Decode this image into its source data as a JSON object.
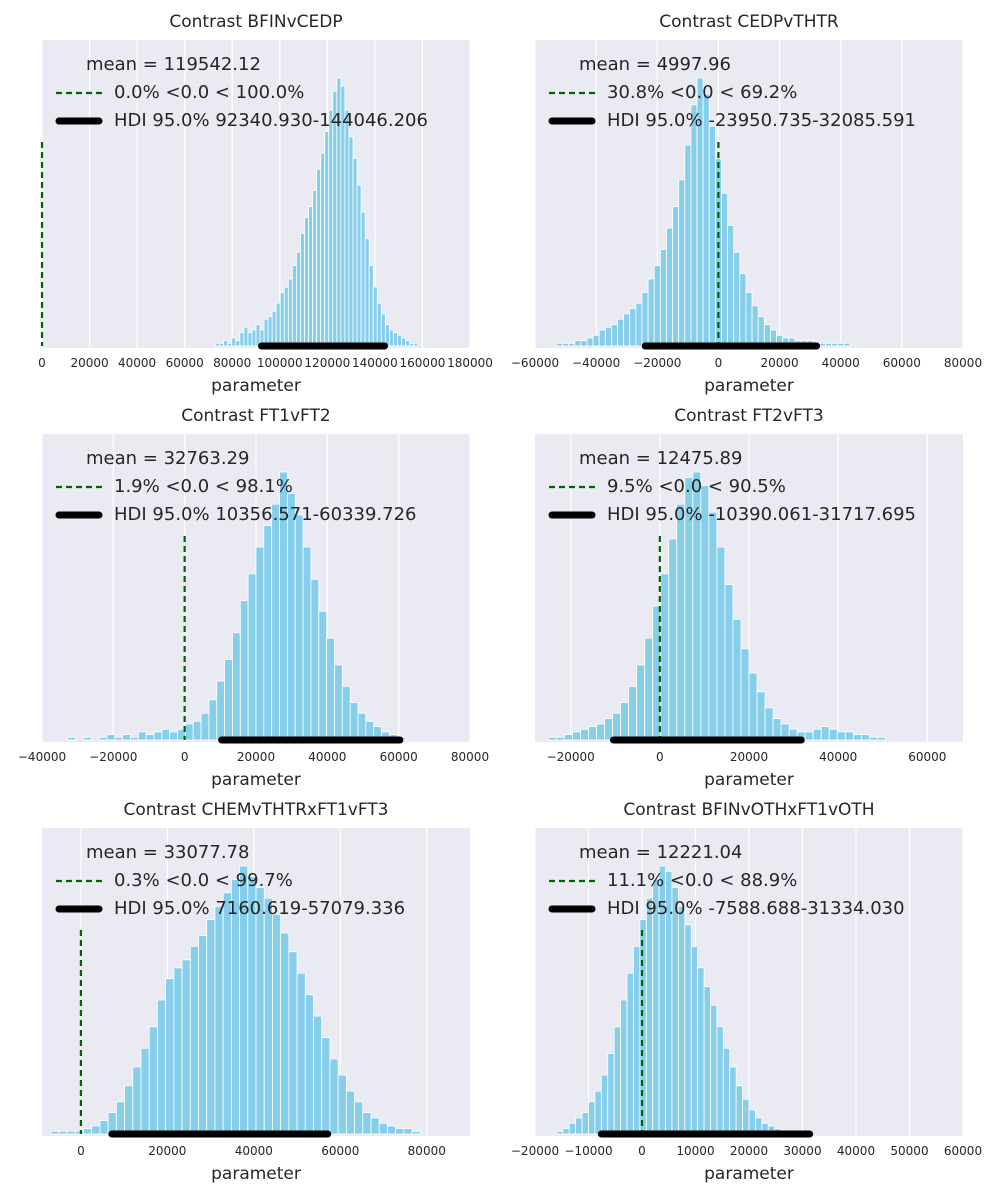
{
  "chart_data": [
    {
      "type": "bar",
      "title": "Contrast BFINvCEDP",
      "xlabel": "parameter",
      "ylabel": "",
      "xlim": [
        0,
        180000
      ],
      "xticks": [
        0,
        20000,
        40000,
        60000,
        80000,
        100000,
        120000,
        140000,
        160000,
        180000
      ],
      "grid": true,
      "legend_position": "top-left",
      "reference_value": 0.0,
      "stats": {
        "mean": 119542.12,
        "pct_below": 0.0,
        "pct_above": 100.0,
        "hdi": 95.0,
        "hdi_low": 92340.93,
        "hdi_high": 144046.206
      },
      "legend": [
        "mean = 119542.12",
        "0.0% <0.0 < 100.0%",
        "HDI 95.0% 92340.930-144046.206"
      ],
      "bin_start": 73000,
      "bin_width": 1700,
      "counts": [
        1,
        1,
        2,
        1,
        3,
        2,
        5,
        7,
        5,
        6,
        8,
        6,
        10,
        11,
        13,
        16,
        20,
        22,
        25,
        30,
        35,
        42,
        48,
        52,
        58,
        66,
        72,
        80,
        88,
        95,
        100,
        97,
        88,
        78,
        70,
        60,
        50,
        40,
        30,
        22,
        16,
        12,
        8,
        6,
        5,
        4,
        3,
        2,
        1,
        1
      ]
    },
    {
      "type": "bar",
      "title": "Contrast CEDPvTHTR",
      "xlabel": "parameter",
      "ylabel": "",
      "xlim": [
        -60000,
        80000
      ],
      "xticks": [
        -60000,
        -40000,
        -20000,
        0,
        20000,
        40000,
        60000,
        80000
      ],
      "grid": true,
      "legend_position": "top-left",
      "reference_value": 0.0,
      "stats": {
        "mean": 4997.96,
        "pct_below": 30.8,
        "pct_above": 69.2,
        "hdi": 95.0,
        "hdi_low": -23950.735,
        "hdi_high": 32085.591
      },
      "legend": [
        "mean = 4997.96",
        "30.8% <0.0 < 69.2%",
        "HDI 95.0% -23950.735-32085.591"
      ],
      "bin_start": -55000,
      "bin_width": 2000,
      "counts": [
        0,
        1,
        1,
        1,
        2,
        2,
        3,
        4,
        6,
        7,
        8,
        10,
        12,
        14,
        16,
        20,
        25,
        30,
        36,
        44,
        52,
        62,
        75,
        90,
        100,
        94,
        82,
        70,
        57,
        45,
        35,
        27,
        20,
        15,
        11,
        8,
        6,
        4,
        3,
        3,
        2,
        2,
        2,
        1,
        1,
        1,
        1,
        1,
        1
      ]
    },
    {
      "type": "bar",
      "title": "Contrast FT1vFT2",
      "xlabel": "parameter",
      "ylabel": "",
      "xlim": [
        -40000,
        80000
      ],
      "xticks": [
        -40000,
        -20000,
        0,
        20000,
        40000,
        60000,
        80000
      ],
      "grid": true,
      "legend_position": "top-left",
      "reference_value": 0.0,
      "stats": {
        "mean": 32763.29,
        "pct_below": 1.9,
        "pct_above": 98.1,
        "hdi": 95.0,
        "hdi_low": 10356.571,
        "hdi_high": 60339.726
      },
      "legend": [
        "mean = 32763.29",
        "1.9% <0.0 < 98.1%",
        "HDI 95.0% 10356.571-60339.726"
      ],
      "bin_start": -35000,
      "bin_width": 2200,
      "counts": [
        0,
        1,
        0,
        1,
        0,
        1,
        2,
        1,
        2,
        1,
        3,
        2,
        3,
        4,
        3,
        4,
        6,
        7,
        10,
        15,
        22,
        30,
        40,
        52,
        62,
        72,
        80,
        88,
        100,
        92,
        84,
        72,
        60,
        48,
        38,
        28,
        20,
        14,
        10,
        7,
        5,
        3,
        2,
        1
      ]
    },
    {
      "type": "bar",
      "title": "Contrast FT2vFT3",
      "xlabel": "parameter",
      "ylabel": "",
      "xlim": [
        -28000,
        68000
      ],
      "xticks": [
        -20000,
        0,
        20000,
        40000,
        60000
      ],
      "grid": true,
      "legend_position": "top-left",
      "reference_value": 0.0,
      "stats": {
        "mean": 12475.89,
        "pct_below": 9.5,
        "pct_above": 90.5,
        "hdi": 95.0,
        "hdi_low": -10390.061,
        "hdi_high": 31717.695
      },
      "legend": [
        "mean = 12475.89",
        "9.5% <0.0 < 90.5%",
        "HDI 95.0% -10390.061-31717.695"
      ],
      "bin_start": -25000,
      "bin_width": 1800,
      "counts": [
        1,
        1,
        2,
        3,
        4,
        5,
        6,
        8,
        10,
        14,
        20,
        28,
        38,
        50,
        62,
        75,
        88,
        98,
        100,
        95,
        85,
        72,
        58,
        45,
        34,
        25,
        18,
        12,
        8,
        6,
        4,
        3,
        3,
        4,
        5,
        4,
        3,
        3,
        2,
        2,
        1,
        1
      ]
    },
    {
      "type": "bar",
      "title": "Contrast CHEMvTHTRxFT1vFT3",
      "xlabel": "parameter",
      "ylabel": "",
      "xlim": [
        -9000,
        90000
      ],
      "xticks": [
        0,
        20000,
        40000,
        60000,
        80000
      ],
      "grid": true,
      "legend_position": "top-left",
      "reference_value": 0.0,
      "stats": {
        "mean": 33077.78,
        "pct_below": 0.3,
        "pct_above": 99.7,
        "hdi": 95.0,
        "hdi_low": 7160.619,
        "hdi_high": 57079.336
      },
      "legend": [
        "mean = 33077.78",
        "0.3% <0.0 < 99.7%",
        "HDI 95.0% 7160.619-57079.336"
      ],
      "bin_start": -7000,
      "bin_width": 1900,
      "counts": [
        1,
        1,
        1,
        1,
        2,
        3,
        5,
        8,
        12,
        18,
        25,
        32,
        40,
        50,
        58,
        62,
        65,
        70,
        74,
        80,
        85,
        90,
        95,
        100,
        96,
        92,
        88,
        82,
        75,
        68,
        60,
        52,
        44,
        36,
        28,
        22,
        16,
        12,
        8,
        6,
        4,
        3,
        2,
        2,
        1
      ]
    },
    {
      "type": "bar",
      "title": "Contrast BFINvOTHxFT1vOTH",
      "xlabel": "parameter",
      "ylabel": "",
      "xlim": [
        -20000,
        60000
      ],
      "xticks": [
        -20000,
        -10000,
        0,
        10000,
        20000,
        30000,
        40000,
        50000,
        60000
      ],
      "grid": true,
      "legend_position": "top-left",
      "reference_value": 0.0,
      "stats": {
        "mean": 12221.04,
        "pct_below": 11.1,
        "pct_above": 88.9,
        "hdi": 95.0,
        "hdi_low": -7588.688,
        "hdi_high": 31334.03
      },
      "legend": [
        "mean = 12221.04",
        "11.1% <0.0 < 88.9%",
        "HDI 95.0% -7588.688-31334.030"
      ],
      "bin_start": -16000,
      "bin_width": 1200,
      "counts": [
        1,
        2,
        4,
        6,
        8,
        12,
        16,
        22,
        30,
        40,
        50,
        60,
        70,
        80,
        88,
        95,
        100,
        98,
        92,
        85,
        78,
        70,
        62,
        55,
        48,
        40,
        32,
        25,
        18,
        13,
        9,
        6,
        4,
        3,
        2,
        1,
        1,
        1
      ]
    }
  ]
}
